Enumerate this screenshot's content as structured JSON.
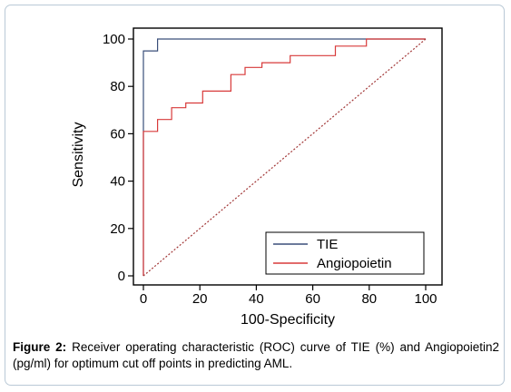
{
  "chart_data": {
    "type": "line",
    "xlabel": "100-Specificity",
    "ylabel": "Sensitivity",
    "xlim": [
      0,
      100
    ],
    "ylim": [
      0,
      100
    ],
    "xticks": [
      0,
      20,
      40,
      60,
      80,
      100
    ],
    "yticks": [
      0,
      20,
      40,
      60,
      80,
      100
    ],
    "grid": false,
    "legend_position": "bottom-right",
    "series": [
      {
        "name": "TIE",
        "color": "#3a4f7a",
        "style": "solid",
        "points": [
          [
            0,
            0
          ],
          [
            0,
            95
          ],
          [
            5,
            95
          ],
          [
            5,
            100
          ],
          [
            100,
            100
          ]
        ]
      },
      {
        "name": "Angiopoietin",
        "color": "#d83a3a",
        "style": "solid",
        "points": [
          [
            0,
            0
          ],
          [
            0,
            61
          ],
          [
            5,
            61
          ],
          [
            5,
            66
          ],
          [
            10,
            66
          ],
          [
            10,
            71
          ],
          [
            15,
            71
          ],
          [
            15,
            73
          ],
          [
            21,
            73
          ],
          [
            21,
            78
          ],
          [
            31,
            78
          ],
          [
            31,
            85
          ],
          [
            36,
            85
          ],
          [
            36,
            88
          ],
          [
            42,
            88
          ],
          [
            42,
            90
          ],
          [
            52,
            90
          ],
          [
            52,
            93
          ],
          [
            68,
            93
          ],
          [
            68,
            97
          ],
          [
            79,
            97
          ],
          [
            79,
            100
          ],
          [
            100,
            100
          ]
        ]
      },
      {
        "name": "",
        "color": "#a23838",
        "style": "dotted",
        "points": [
          [
            0,
            0
          ],
          [
            100,
            100
          ]
        ]
      }
    ]
  },
  "caption": {
    "label": "Figure 2:",
    "text": " Receiver operating characteristic (ROC) curve of TIE (%) and Angiopoietin2 (pg/ml) for optimum cut off points in predicting AML."
  }
}
